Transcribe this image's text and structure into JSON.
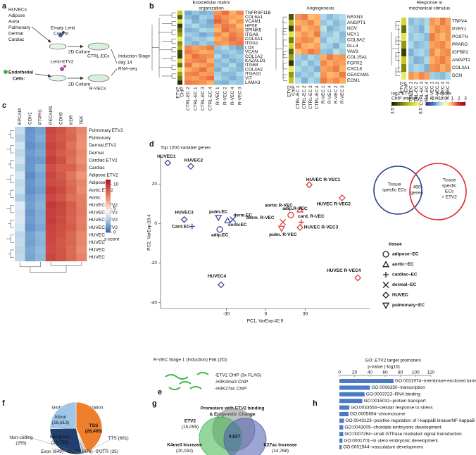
{
  "panel_labels": [
    "a",
    "b",
    "c",
    "d",
    "e",
    "f",
    "g",
    "h"
  ],
  "panel_a": {
    "sources": [
      "HUVECs",
      "Adipose",
      "Aorta",
      "Pulmonary",
      "Dermal",
      "Cardiac"
    ],
    "control_vector": [
      "Empty Lenti",
      "Control"
    ],
    "culture_1": "2D Culture",
    "ctrl_cells": "CTRL-ECs",
    "cells_label": [
      "Endothelial",
      "Cells:"
    ],
    "etv2_vector": "Lenti-ETV2",
    "culture_2": "2D Culture",
    "rvec_cells": "R-VECs",
    "stage": [
      "Induction Stage",
      "day 14",
      "RNA-seq"
    ]
  },
  "chart_data": [
    {
      "type": "heatmap",
      "chip_column": [
        "ETV2",
        "ChIP"
      ],
      "blocks": [
        {
          "title": [
            "Extacellular matrix",
            "organization"
          ],
          "columns": [
            "CTRL-EC 2",
            "CTRL-EC 1",
            "CTRL-EC 3",
            "CTRL-EC 4",
            "R-VEC 1",
            "R-VEC 2",
            "R-VEC 4",
            "R-VEC 3"
          ],
          "rows": [
            "TNFRSF11B",
            "COL6A1",
            "VCAM1",
            "HPSE",
            "SPINK5",
            "ITGA8",
            "COL4A1",
            "ITGA1",
            "LOX",
            "VCAN",
            "COL1A2",
            "KAZALD1",
            "ITGB4",
            "COL4A2",
            "ITGA10",
            "VIT",
            "LAMA3"
          ],
          "chip": [
            5.5,
            4.2,
            6.0,
            3.8,
            4.5,
            5.0,
            6.2,
            4.8,
            5.2,
            4.0,
            3.9,
            5.8,
            4.4,
            6.1,
            5.0,
            4.6,
            3.7
          ],
          "values": [
            [
              -1.5,
              -1.2,
              -1.4,
              -1.3,
              1.2,
              1.5,
              1.0,
              1.3
            ],
            [
              -1.3,
              -1.5,
              -1.1,
              -1.2,
              1.4,
              1.2,
              1.1,
              1.0
            ],
            [
              -1.0,
              -1.4,
              -1.2,
              -1.5,
              1.6,
              1.3,
              0.9,
              1.2
            ],
            [
              -1.2,
              -1.0,
              -1.3,
              -1.4,
              1.1,
              1.4,
              1.3,
              0.8
            ],
            [
              -1.4,
              -1.3,
              -1.0,
              -1.1,
              0.9,
              1.5,
              1.2,
              1.1
            ],
            [
              -1.1,
              -1.2,
              -1.5,
              -1.3,
              1.3,
              1.0,
              1.4,
              1.2
            ],
            [
              -1.3,
              -1.1,
              -1.2,
              -1.0,
              1.0,
              1.2,
              1.5,
              1.3
            ],
            [
              -1.2,
              -1.4,
              -1.1,
              -1.3,
              1.2,
              1.1,
              1.3,
              1.4
            ],
            [
              1.3,
              1.1,
              1.2,
              1.4,
              -1.2,
              -1.0,
              -1.3,
              -1.5
            ],
            [
              1.4,
              1.2,
              1.0,
              1.1,
              -1.3,
              -1.2,
              -1.1,
              -1.3
            ],
            [
              1.1,
              1.5,
              1.3,
              1.2,
              -1.0,
              -1.4,
              -1.2,
              -1.1
            ],
            [
              1.2,
              1.3,
              1.4,
              1.0,
              -1.3,
              -1.1,
              -1.4,
              -1.2
            ],
            [
              1.5,
              1.0,
              1.1,
              1.3,
              -1.2,
              -1.3,
              -1.0,
              -1.4
            ],
            [
              1.0,
              1.2,
              1.5,
              1.1,
              -1.4,
              -1.0,
              -1.2,
              -1.3
            ],
            [
              1.3,
              1.4,
              1.1,
              1.2,
              -1.1,
              -1.3,
              -1.3,
              -1.0
            ],
            [
              1.2,
              1.1,
              1.3,
              1.5,
              -1.0,
              -1.2,
              -1.4,
              -1.2
            ],
            [
              1.4,
              1.3,
              1.2,
              1.0,
              -1.3,
              -1.4,
              -1.1,
              -1.2
            ]
          ]
        },
        {
          "title": [
            "Angiogenesis"
          ],
          "columns": [
            "CTRL-EC 1",
            "CTRL-EC 2",
            "CTRL-EC 3",
            "CTRL-EC 4",
            "R-VEC 1",
            "R-VEC 4",
            "R-VEC 2",
            "R-VEC 3"
          ],
          "rows": [
            "NRXN3",
            "ANGPT1",
            "NOV",
            "HEY1",
            "COL8A2",
            "DLL4",
            "VAV3",
            "COL15A1",
            "FGFR2",
            "CXCL8",
            "CEACAM1",
            "ECM1"
          ],
          "chip": [
            4.1,
            5.3,
            3.9,
            6.0,
            4.6,
            5.7,
            4.3,
            5.0,
            3.8,
            6.2,
            4.9,
            5.4
          ],
          "values": [
            [
              1.2,
              1.4,
              0.8,
              1.0,
              -1.0,
              -1.3,
              -1.1,
              -0.9
            ],
            [
              1.0,
              1.1,
              1.3,
              0.9,
              -1.2,
              -1.0,
              -1.3,
              -1.1
            ],
            [
              1.3,
              0.9,
              1.1,
              1.2,
              -0.8,
              -1.4,
              -1.2,
              -1.0
            ],
            [
              0.9,
              1.2,
              1.0,
              1.4,
              -1.1,
              -1.2,
              -0.9,
              -1.3
            ],
            [
              1.1,
              1.3,
              1.2,
              0.8,
              -1.3,
              -0.9,
              -1.0,
              -1.2
            ],
            [
              1.4,
              1.0,
              0.9,
              1.1,
              -1.0,
              -1.1,
              -1.4,
              -0.9
            ],
            [
              0.8,
              1.1,
              1.4,
              1.2,
              -1.2,
              -1.3,
              -0.8,
              -1.1
            ],
            [
              -1.1,
              -1.3,
              -1.0,
              -1.2,
              1.0,
              1.4,
              1.1,
              1.2
            ],
            [
              -1.2,
              -0.9,
              -1.3,
              -1.1,
              1.3,
              1.0,
              1.2,
              1.1
            ],
            [
              -1.0,
              -1.2,
              -1.1,
              -1.4,
              1.1,
              1.2,
              1.4,
              0.9
            ],
            [
              -1.3,
              -1.1,
              -1.2,
              -0.9,
              1.2,
              0.9,
              1.0,
              1.4
            ],
            [
              -0.9,
              -1.4,
              -1.0,
              -1.2,
              1.4,
              1.1,
              1.3,
              1.0
            ]
          ]
        },
        {
          "title": [
            "Response to",
            "mechanical stimulus"
          ],
          "columns": [
            "CTRL-EC 1",
            "CTRL-EC 2",
            "CTRL-EC 3",
            "CTRL-EC 4",
            "R-VEC 1",
            "R-VEC 2",
            "R-VEC 4",
            "R-VEC 3"
          ],
          "rows": [
            "TRPV4",
            "P2RY1",
            "POSTN",
            "PPARG",
            "IGFBP2",
            "ANGPT2",
            "COL3A1",
            "DCN"
          ],
          "chip": [
            5.8,
            4.4,
            6.1,
            4.9,
            3.9,
            5.5,
            4.7,
            6.3
          ],
          "values": [
            [
              -1.3,
              -1.1,
              -1.2,
              -1.0,
              1.2,
              1.0,
              1.4,
              1.1
            ],
            [
              -1.1,
              -1.2,
              -1.4,
              -0.9,
              1.0,
              1.3,
              1.1,
              1.2
            ],
            [
              -1.2,
              -1.0,
              -1.1,
              -1.3,
              1.4,
              1.1,
              0.9,
              1.2
            ],
            [
              -1.0,
              -1.3,
              -1.2,
              -1.1,
              1.1,
              1.2,
              1.3,
              1.0
            ],
            [
              -1.4,
              -1.1,
              -1.0,
              -1.2,
              1.3,
              0.9,
              1.2,
              1.3
            ],
            [
              -1.1,
              -1.4,
              -1.3,
              -1.0,
              1.0,
              1.2,
              1.4,
              1.1
            ],
            [
              -1.2,
              -1.0,
              -1.1,
              -1.4,
              1.2,
              1.3,
              1.0,
              1.2
            ],
            [
              1.2,
              1.0,
              1.3,
              1.1,
              -1.1,
              -1.2,
              -1.3,
              -1.0
            ]
          ]
        }
      ],
      "chip_legend": {
        "title": [
          "log2 ETV2",
          "ChIP intensity"
        ],
        "lim": [
          3.5,
          6.5
        ],
        "ticks": [
          3.5,
          6.5
        ]
      },
      "zscore_legend": {
        "title": "z-score",
        "lim": [
          -3,
          3
        ],
        "ticks": [
          -3,
          -2,
          -1,
          0,
          1,
          2,
          3
        ]
      }
    },
    {
      "type": "heatmap-matrix",
      "columns": [
        "EPCAM",
        "CDH1",
        "PTPRC",
        "PECAM1",
        "CDH5",
        "KDR",
        "TEK"
      ],
      "rows": [
        "Pulmonary.ETV2",
        "Pulmonary",
        "Dermal.ETV2",
        "Dermal",
        "Cardiac.ETV2",
        "Cardiac",
        "Adipose.ETV2",
        "Adipose",
        "Aortic.ETV2",
        "Aortic",
        "HUVEC.ETV2",
        "HUVEC.ETV2",
        "HUVEC.ETV2",
        "HUVEC.ETV2",
        "HUVEC",
        "HUVEC",
        "HUVEC",
        "HUVEC"
      ],
      "values": [
        [
          3.2,
          1.0,
          1.4,
          9.6,
          9.1,
          8.4,
          7.6
        ],
        [
          2.8,
          1.1,
          1.6,
          9.4,
          9.0,
          8.6,
          7.4
        ],
        [
          3.5,
          0.9,
          1.3,
          9.7,
          9.2,
          8.2,
          7.2
        ],
        [
          3.0,
          1.2,
          1.5,
          9.5,
          8.9,
          8.5,
          7.5
        ],
        [
          3.4,
          1.0,
          1.2,
          9.8,
          9.3,
          8.3,
          7.3
        ],
        [
          2.9,
          1.1,
          1.7,
          9.3,
          8.8,
          8.7,
          7.7
        ],
        [
          3.6,
          0.8,
          1.4,
          9.6,
          9.0,
          8.1,
          7.1
        ],
        [
          3.1,
          1.0,
          1.5,
          9.4,
          9.2,
          8.4,
          7.6
        ],
        [
          3.3,
          0.9,
          1.3,
          9.9,
          9.4,
          8.6,
          7.4
        ],
        [
          2.7,
          1.2,
          1.6,
          9.5,
          9.1,
          8.3,
          7.8
        ],
        [
          3.8,
          1.3,
          1.8,
          10.0,
          9.6,
          8.9,
          7.9
        ],
        [
          3.6,
          1.1,
          1.6,
          9.8,
          9.5,
          8.8,
          8.0
        ],
        [
          3.7,
          1.2,
          1.7,
          9.9,
          9.4,
          8.7,
          7.8
        ],
        [
          3.5,
          1.0,
          1.5,
          9.7,
          9.3,
          8.9,
          7.9
        ],
        [
          3.0,
          1.4,
          1.9,
          9.6,
          9.2,
          8.5,
          7.5
        ],
        [
          3.2,
          1.3,
          1.8,
          9.5,
          9.0,
          8.6,
          7.6
        ],
        [
          2.9,
          1.5,
          2.0,
          9.4,
          9.1,
          8.4,
          7.4
        ],
        [
          3.1,
          1.4,
          1.9,
          9.6,
          9.2,
          8.5,
          7.7
        ]
      ],
      "lim": [
        0,
        11
      ],
      "colorbar_ticks": [
        0,
        5,
        10
      ],
      "colorbar_label": "z-score"
    },
    {
      "type": "scatter",
      "title": "Top 1000 variable genes",
      "x_label": "PC1, VarExp:42.9",
      "y_label": "PC2, VarExp:19.4",
      "xlim": [
        -80,
        79
      ],
      "xticks": [
        -30,
        0,
        30
      ],
      "ylim": [
        -43,
        34
      ],
      "yticks": [
        -40,
        -20,
        0,
        20
      ],
      "series": [
        {
          "color": "#3f4a9e",
          "labels": [
            "HUVEC1",
            "HUVEC2",
            "HUVEC3",
            "Card.EC",
            "adip.EC",
            "pulm.EC",
            "sorticEC",
            "derm.EC",
            "HUVEC4"
          ],
          "shapes": [
            "diamond",
            "diamond",
            "diamond",
            "plus",
            "circle",
            "triangle-down",
            "triangle",
            "cross",
            "diamond"
          ],
          "x": [
            -74.5,
            -57,
            -62,
            -56,
            -35,
            -36,
            -29,
            -25,
            -34
          ],
          "y": [
            30.7,
            29,
            2,
            -1.5,
            -3,
            3,
            1.5,
            2,
            -31
          ]
        },
        {
          "color": "#d9413e",
          "labels": [
            "HUVEC R-VEC1",
            "HUVEC R-VEC2",
            "aortic R-VEC",
            "adip.R-VEC",
            "card. R-VEC",
            "derm. R-VEC",
            "pulm. R-VEC",
            "HUVEC R-VEC3",
            "HUVEC R-VEC4"
          ],
          "shapes": [
            "diamond",
            "diamond",
            "triangle",
            "circle",
            "plus",
            "cross",
            "triangle-down",
            "diamond",
            "diamond"
          ],
          "x": [
            33,
            58,
            26,
            19,
            27,
            13,
            12,
            26,
            70
          ],
          "y": [
            19.6,
            13,
            7,
            4.3,
            0.7,
            0.7,
            -2.5,
            -2,
            -27.5
          ]
        }
      ],
      "legend": {
        "title": "tissue",
        "items": [
          {
            "label": "adipose−EC",
            "shape": "circle"
          },
          {
            "label": "aortic−EC",
            "shape": "triangle"
          },
          {
            "label": "cardiac−EC",
            "shape": "plus"
          },
          {
            "label": "dermal−EC",
            "shape": "cross"
          },
          {
            "label": "HUVEC",
            "shape": "diamond"
          },
          {
            "label": "pulmonary−EC",
            "shape": "triangle-down"
          }
        ]
      },
      "venn": {
        "left": [
          "Tissue",
          "specfic ECs"
        ],
        "right": [
          "Tissue",
          "specfic",
          "ECs",
          "+ ETV2"
        ],
        "overlap": [
          "490",
          "genes"
        ],
        "left_color": "#2d3e8f",
        "right_color": "#d9262b"
      }
    },
    {
      "type": "pie",
      "title": "Global ETV2 Localization",
      "categories": [
        "TSS",
        "TTS",
        "5'UTR",
        "3'UTR",
        "Exon",
        "Non-coding",
        "Intergenic",
        "Intron"
      ],
      "values": [
        28405,
        681,
        35,
        476,
        649,
        255,
        18750,
        16613
      ],
      "value_labels": [
        "(28,405)",
        "(681)",
        "(35)",
        "(476)",
        "(649)",
        "(255)",
        "(18,750)",
        "(16,613)"
      ],
      "colors": [
        "#ee7f2d",
        "#b7b7b7",
        "#cfcfcf",
        "#9a9a9a",
        "#6f6f6f",
        "#dddddd",
        "#22406e",
        "#9fc5e8"
      ]
    },
    {
      "type": "bar",
      "orientation": "horizontal",
      "title": "GO: ETV2 target promoters",
      "x_label": "p-value (-log10)",
      "xlim": [
        0,
        120
      ],
      "xticks": [
        0,
        20,
        40,
        60,
        80,
        100,
        120
      ],
      "color": "#4a7bc4",
      "categories": [
        "GO:0031974~membrane-enclosed lumen",
        "GO:0006350~transcription",
        "GO:0003723~RNA binding",
        "GO:0015031~protein transport",
        "GO:0033554~cellular response to stress",
        "GO:0005694~chromosome",
        "GO:0043123~positive regulation of I-kappaB kinase/NF-kappaB cascade",
        "GO:0043009~chordate embryonic development",
        "GO:0007264~small GTPase mediated signal transduction",
        "GO:0001701~in utero embryonic development",
        "GO:0001944~vasculature development"
      ],
      "values": [
        71,
        40,
        33,
        30,
        13,
        12,
        6,
        5,
        5,
        4,
        3
      ],
      "label_colors": [
        "#c0392b",
        "#111111",
        "#111111",
        "#111111",
        "#111111",
        "#111111",
        "#111111",
        "#111111",
        "#c0392b",
        "#111111",
        "#c0392b"
      ]
    }
  ],
  "panel_e": {
    "title": "R-VEC Stage 1 (Induction) Flat (2D)",
    "assays": [
      "-ETV2 ChIP (3x FLAG)",
      "-H3K4me3 ChIP",
      "-H3K27ac ChIP"
    ]
  },
  "panel_g": {
    "title": [
      "Promoters with ETV2 binding",
      "& Epigenetic Change"
    ],
    "sets": [
      {
        "name": "ETV2",
        "count": "(15,095)",
        "color": "#8c8c8c",
        "text_color": "#222222"
      },
      {
        "name": "K4me3 Increase",
        "count": "(20,032)",
        "color": "#3db54a",
        "text_color": "#1f8a3a"
      },
      {
        "name": "K27ac Increase",
        "count": "(14,768)",
        "color": "#4d5bb0",
        "text_color": "#2d3e8f"
      }
    ],
    "overlap": "9,827"
  }
}
